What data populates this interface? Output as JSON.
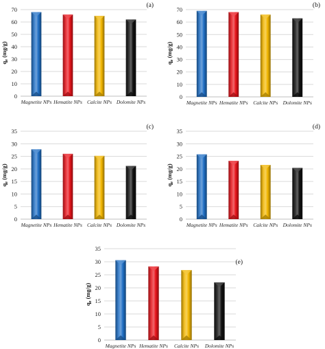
{
  "colors": {
    "magnetite": "#1f6fc5",
    "hematite": "#e8141b",
    "calcite": "#f2b600",
    "dolomite": "#111111"
  },
  "chart_data": [
    {
      "type": "bar",
      "label": "(a)",
      "ylabel_main": "q",
      "ylabel_sub": "e",
      "ylabel_unit": " (mg/g)",
      "categories": [
        "Magnetite NPs",
        "Hematite NPs",
        "Calcite NPs",
        "Dolomite NPs"
      ],
      "values": [
        68,
        66,
        65,
        62
      ],
      "ylim": [
        0,
        70
      ],
      "yticks": [
        0,
        10,
        20,
        30,
        40,
        50,
        60,
        70
      ],
      "grid": true
    },
    {
      "type": "bar",
      "label": "(b)",
      "ylabel_main": "q",
      "ylabel_sub": "e",
      "ylabel_unit": " (mg/g)",
      "categories": [
        "Magnetite NPs",
        "Hematite NPs",
        "Calcite NPs",
        "Dolomite NPs"
      ],
      "values": [
        69,
        68,
        66,
        63
      ],
      "ylim": [
        0,
        70
      ],
      "yticks": [
        0,
        10,
        20,
        30,
        40,
        50,
        60,
        70
      ],
      "grid": true
    },
    {
      "type": "bar",
      "label": "(c)",
      "ylabel_main": "q",
      "ylabel_sub": "e",
      "ylabel_unit": " (mg/g)",
      "categories": [
        "Magnetite NPs",
        "Hematite NPs",
        "Calcite NPs",
        "Dolomite NPs"
      ],
      "values": [
        27.8,
        26,
        25.2,
        21.2
      ],
      "ylim": [
        0,
        35
      ],
      "yticks": [
        0,
        5,
        10,
        15,
        20,
        25,
        30,
        35
      ],
      "grid": true
    },
    {
      "type": "bar",
      "label": "(d)",
      "ylabel_main": "q",
      "ylabel_sub": "e",
      "ylabel_unit": " (mg/g)",
      "categories": [
        "Magnetite NPs",
        "Hematite NPs",
        "Calcite NPs",
        "Dolomite NPs"
      ],
      "values": [
        25.8,
        23.2,
        21.6,
        20.4
      ],
      "ylim": [
        0,
        35
      ],
      "yticks": [
        0,
        5,
        10,
        15,
        20,
        25,
        30,
        35
      ],
      "grid": true
    },
    {
      "type": "bar",
      "label": "(e)",
      "ylabel_main": "q",
      "ylabel_sub": "e",
      "ylabel_unit": " (mg/g)",
      "categories": [
        "Magnetite NPs",
        "Hematite NPs",
        "Calcite NPs",
        "Dolomite NPs"
      ],
      "values": [
        30.6,
        28.2,
        26.8,
        22.1
      ],
      "ylim": [
        0,
        35
      ],
      "yticks": [
        0,
        5,
        10,
        15,
        20,
        25,
        30,
        35
      ],
      "grid": true
    }
  ]
}
